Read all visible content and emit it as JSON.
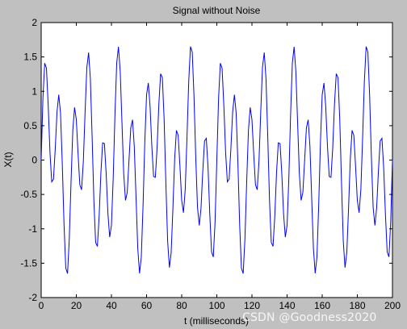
{
  "chart_data": {
    "type": "line",
    "title": "Signal without Noise",
    "xlabel": "t (milliseconds)",
    "ylabel": "X(t)",
    "xlim": [
      0,
      200
    ],
    "ylim": [
      -2,
      2
    ],
    "grid": false,
    "xticks": [
      "0",
      "20",
      "40",
      "60",
      "80",
      "100",
      "120",
      "140",
      "160",
      "180",
      "200"
    ],
    "yticks": [
      "-2",
      "-1.5",
      "-1",
      "-0.5",
      "0",
      "0.5",
      "1",
      "1.5",
      "2"
    ],
    "series": [
      {
        "color": "#0000ff",
        "signal": {
          "components": [
            {
              "amplitude": 0.7,
              "frequency_hz": 50,
              "phase": 0
            },
            {
              "amplitude": 1.0,
              "frequency_hz": 120,
              "phase": 0
            }
          ],
          "sample_rate_hz": 1000,
          "t_start_ms": 0,
          "t_end_ms": 200
        }
      }
    ]
  },
  "watermark": "CSDN @Goodness2020",
  "colors": {
    "figure_background": "#c0c0c0",
    "axes_background": "#ffffff",
    "line": "#0000ff"
  }
}
